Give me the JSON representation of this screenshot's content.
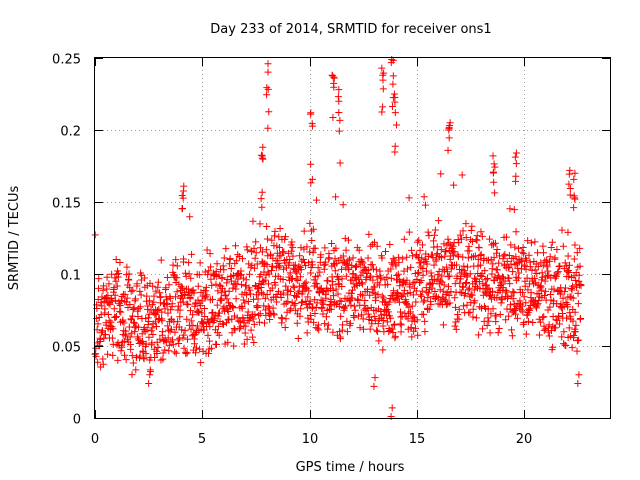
{
  "chart_data": {
    "type": "scatter",
    "title": "Day 233 of 2014, SRMTID for receiver ons1",
    "xlabel": "GPS time / hours",
    "ylabel": "SRMTID / TECUs",
    "xlim": [
      0,
      24
    ],
    "ylim": [
      0,
      0.25
    ],
    "xticks": [
      0,
      5,
      10,
      15,
      20
    ],
    "xtick_labels": [
      "0",
      "5",
      "10",
      "15",
      "20"
    ],
    "yticks": [
      0,
      0.05,
      0.1,
      0.15,
      0.2,
      0.25
    ],
    "ytick_labels": [
      "0",
      "0.05",
      "0.1",
      "0.15",
      "0.2",
      "0.25"
    ],
    "grid": true,
    "marker": "+",
    "series": [
      {
        "name": "SRMTID",
        "color": "#ff0000",
        "x_start": 0.0,
        "x_step": 0.0125,
        "points_per_hour": 80,
        "x_end": 22.65,
        "value_range": [
          0.0,
          0.25
        ],
        "baseline_by_hour": [
          [
            0,
            0.068
          ],
          [
            1,
            0.075
          ],
          [
            2,
            0.065
          ],
          [
            3,
            0.072
          ],
          [
            4,
            0.075
          ],
          [
            5,
            0.078
          ],
          [
            6,
            0.082
          ],
          [
            7,
            0.085
          ],
          [
            8,
            0.098
          ],
          [
            9,
            0.095
          ],
          [
            10,
            0.09
          ],
          [
            11,
            0.092
          ],
          [
            12,
            0.088
          ],
          [
            13,
            0.085
          ],
          [
            14,
            0.088
          ],
          [
            15,
            0.09
          ],
          [
            16,
            0.1
          ],
          [
            17,
            0.098
          ],
          [
            18,
            0.095
          ],
          [
            19,
            0.092
          ],
          [
            20,
            0.088
          ],
          [
            21,
            0.085
          ],
          [
            22,
            0.08
          ],
          [
            22.65,
            0.078
          ]
        ],
        "peaks": [
          {
            "x": 4.1,
            "y": 0.161
          },
          {
            "x": 7.8,
            "y": 0.188
          },
          {
            "x": 8.05,
            "y": 0.246
          },
          {
            "x": 10.1,
            "y": 0.212
          },
          {
            "x": 11.1,
            "y": 0.238
          },
          {
            "x": 11.4,
            "y": 0.228
          },
          {
            "x": 13.4,
            "y": 0.243
          },
          {
            "x": 13.85,
            "y": 0.249
          },
          {
            "x": 14.0,
            "y": 0.225
          },
          {
            "x": 16.5,
            "y": 0.205
          },
          {
            "x": 18.6,
            "y": 0.182
          },
          {
            "x": 19.6,
            "y": 0.184
          },
          {
            "x": 22.1,
            "y": 0.172
          },
          {
            "x": 22.35,
            "y": 0.17
          }
        ],
        "lows": [
          {
            "x": 13.0,
            "y": 0.022
          },
          {
            "x": 13.8,
            "y": 0.001
          },
          {
            "x": 22.5,
            "y": 0.024
          },
          {
            "x": 2.5,
            "y": 0.024
          }
        ]
      }
    ]
  }
}
